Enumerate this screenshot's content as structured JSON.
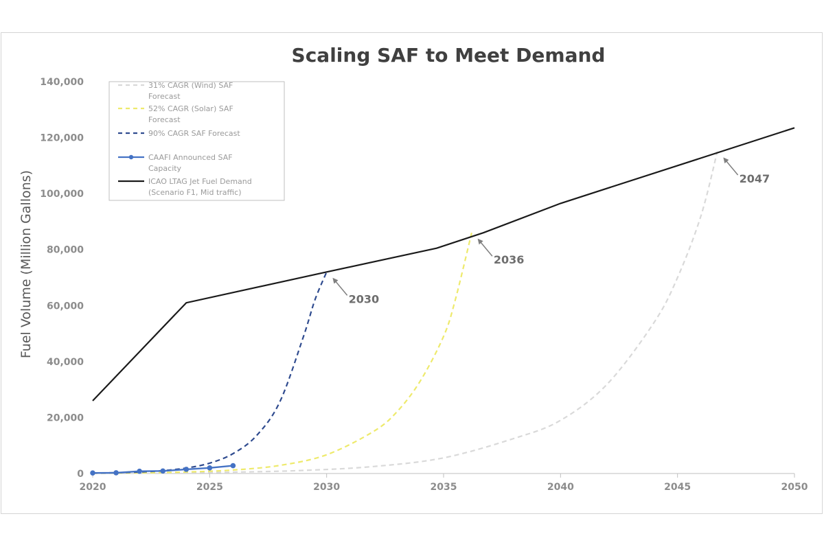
{
  "chart_data": {
    "type": "line",
    "title": "Scaling SAF to Meet Demand",
    "ylabel": "Fuel Volume (Million Gallons)",
    "xlabel": "",
    "xlim": [
      2020,
      2050
    ],
    "ylim": [
      0,
      140000
    ],
    "x_ticks": [
      "2020",
      "2025",
      "2030",
      "2035",
      "2040",
      "2045",
      "2050"
    ],
    "y_ticks": [
      "0",
      "20,000",
      "40,000",
      "60,000",
      "80,000",
      "100,000",
      "120,000",
      "140,000"
    ],
    "grid": false,
    "legend_position": "top-left",
    "series": [
      {
        "name": "31% CAGR (Wind) SAF Forecast",
        "style": "dashed",
        "color": "#d9d9d9",
        "x": [
          2020,
          2023,
          2026,
          2029,
          2032,
          2035,
          2038,
          2040,
          2042,
          2044,
          2045,
          2046,
          2046.7
        ],
        "y": [
          100,
          220,
          490,
          1100,
          2500,
          5600,
          12500,
          19000,
          32000,
          54000,
          70000,
          92000,
          115000
        ]
      },
      {
        "name": "52% CAGR (Solar) SAF Forecast",
        "style": "dashed",
        "color": "#eeea6c",
        "x": [
          2020,
          2022,
          2024,
          2026,
          2028,
          2030,
          2032,
          2033,
          2034,
          2035,
          2035.5,
          2036.2
        ],
        "y": [
          100,
          230,
          530,
          1250,
          2900,
          6700,
          15000,
          22000,
          33000,
          49000,
          62000,
          86000
        ]
      },
      {
        "name": "90% CAGR SAF Forecast",
        "style": "dashed",
        "color": "#2f4b8f",
        "x": [
          2020,
          2021,
          2022,
          2023,
          2024,
          2025,
          2026,
          2027,
          2028,
          2029,
          2029.5,
          2030
        ],
        "y": [
          150,
          285,
          540,
          1030,
          1960,
          3700,
          7100,
          13500,
          25600,
          48700,
          62000,
          72000
        ]
      },
      {
        "name": "CAAFI Announced SAF Capacity",
        "style": "line-markers",
        "color": "#4472c4",
        "x": [
          2020,
          2021,
          2022,
          2023,
          2024,
          2025,
          2026
        ],
        "y": [
          200,
          250,
          800,
          900,
          1500,
          2000,
          2800
        ]
      },
      {
        "name": "ICAO LTAG Jet Fuel Demand (Scenario F1, Mid traffic)",
        "style": "solid",
        "color": "#1a1a1a",
        "x": [
          2020,
          2024,
          2030,
          2034.7,
          2036.7,
          2040,
          2050
        ],
        "y": [
          26000,
          61000,
          72000,
          80500,
          86000,
          96500,
          123500
        ]
      }
    ],
    "legend": [
      {
        "line1": "31% CAGR (Wind) SAF",
        "line2": "Forecast"
      },
      {
        "line1": "52% CAGR (Solar) SAF",
        "line2": "Forecast"
      },
      {
        "line1": "90% CAGR SAF Forecast",
        "line2": ""
      },
      {
        "line1": "CAAFI Announced SAF",
        "line2": "Capacity"
      },
      {
        "line1": "ICAO LTAG Jet Fuel Demand",
        "line2": "(Scenario F1, Mid traffic)"
      }
    ],
    "annotations": [
      {
        "label": "2030",
        "x": 2030,
        "y": 72000
      },
      {
        "label": "2036",
        "x": 2036.2,
        "y": 86000
      },
      {
        "label": "2047",
        "x": 2046.7,
        "y": 115000
      }
    ]
  }
}
